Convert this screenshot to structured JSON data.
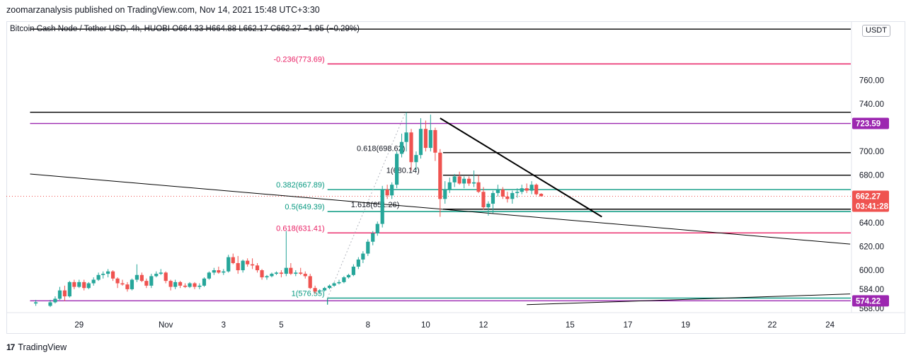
{
  "header": {
    "publisher_line": "zoomarzanalysis published on TradingView.com, Nov 14, 2021 15:48 UTC+3:30"
  },
  "legend": {
    "symbol_line": "Bitcoin Cash Node / Tether USD, 4h, HUOBI  O664.33  H664.88  L662.17  C662.27  −1.95 (−0.29%)"
  },
  "currency_badge": "USDT",
  "footer": {
    "brand": "TradingView",
    "logo_text": "17"
  },
  "colors": {
    "bull": "#26a69a",
    "bear": "#ef5350",
    "fib_pink": "#e91e63",
    "fib_teal": "#089981",
    "purple": "#9c27b0",
    "black": "#000000"
  },
  "chart_data": {
    "type": "candlestick",
    "timeframe": "4h",
    "ylim": [
      562,
      806
    ],
    "xlim_days": [
      27.3,
      57.3
    ],
    "y_ticks": [
      {
        "value": 760,
        "label": "760.00"
      },
      {
        "value": 740,
        "label": "740.00"
      },
      {
        "value": 700,
        "label": "700.00"
      },
      {
        "value": 680,
        "label": "680.00"
      },
      {
        "value": 640,
        "label": "640.00"
      },
      {
        "value": 620,
        "label": "620.00"
      },
      {
        "value": 600,
        "label": "600.00"
      },
      {
        "value": 584,
        "label": "584.00"
      },
      {
        "value": 568,
        "label": "568.00"
      }
    ],
    "x_ticks": [
      {
        "day": 29,
        "label": "29"
      },
      {
        "day": 32,
        "label": "Nov"
      },
      {
        "day": 34,
        "label": "3"
      },
      {
        "day": 36,
        "label": "5"
      },
      {
        "day": 39,
        "label": "8"
      },
      {
        "day": 41,
        "label": "10"
      },
      {
        "day": 43,
        "label": "12"
      },
      {
        "day": 46,
        "label": "15"
      },
      {
        "day": 48,
        "label": "17"
      },
      {
        "day": 50,
        "label": "19"
      },
      {
        "day": 53,
        "label": "22"
      },
      {
        "day": 55,
        "label": "24"
      }
    ],
    "price_badges": [
      {
        "value": 723.59,
        "label": "723.59",
        "color": "#9c27b0"
      },
      {
        "value": 574.22,
        "label": "574.22",
        "color": "#9c27b0"
      },
      {
        "value": 662.27,
        "label": "662.27",
        "sublabel": "03:41:28",
        "color": "#ef5350"
      }
    ],
    "last_price": 662.27,
    "horizontal_levels": [
      {
        "value": 803,
        "color": "#000000",
        "from_day": 27.3,
        "to_day": 56.5
      },
      {
        "value": 733,
        "color": "#000000",
        "from_day": 27.3,
        "to_day": 56.5
      },
      {
        "value": 723.59,
        "color": "#9c27b0",
        "from_day": 27.3,
        "to_day": 56.5
      },
      {
        "value": 699,
        "color": "#000000",
        "from_day": 41.6,
        "to_day": 56.5
      },
      {
        "value": 680,
        "color": "#000000",
        "from_day": 41.6,
        "to_day": 56.5
      },
      {
        "value": 651.4,
        "color": "#000000",
        "from_day": 41.6,
        "to_day": 56.5
      },
      {
        "value": 574.22,
        "color": "#9c27b0",
        "from_day": 27.3,
        "to_day": 56.5
      }
    ],
    "fib_levels": [
      {
        "value": 773.69,
        "label": "-0.236(773.69)",
        "color": "#e91e63",
        "from_day": 37.6,
        "to_day": 56.5
      },
      {
        "value": 667.89,
        "label": "0.382(667.89)",
        "color": "#089981",
        "from_day": 37.6,
        "to_day": 56.5
      },
      {
        "value": 649.39,
        "label": "0.5(649.39)",
        "color": "#089981",
        "from_day": 37.6,
        "to_day": 56.5
      },
      {
        "value": 631.41,
        "label": "0.618(631.41)",
        "color": "#e91e63",
        "from_day": 37.6,
        "to_day": 56.5
      },
      {
        "value": 576.55,
        "label": "1(576.55)",
        "color": "#089981",
        "from_day": 37.6,
        "to_day": 56.5
      }
    ],
    "fib_extension_labels": [
      {
        "value": 698.62,
        "label": "0.618(698.62)",
        "day": 39.8
      },
      {
        "value": 680.14,
        "label": "1(680.14)",
        "day": 40.3
      },
      {
        "value": 651.26,
        "label": "1.618(651.26)",
        "day": 39.6
      }
    ],
    "trend_lines": [
      {
        "from_day": 27.3,
        "from_value": 681,
        "to_day": 55.7,
        "to_value": 622,
        "width": 1
      },
      {
        "from_day": 44.5,
        "from_value": 571,
        "to_day": 55.7,
        "to_value": 580,
        "width": 1
      },
      {
        "from_day": 41.5,
        "from_value": 728,
        "to_day": 47.1,
        "to_value": 645,
        "width": 2
      }
    ],
    "candles": [
      {
        "day": 27.5,
        "o": 572,
        "h": 575,
        "l": 570,
        "c": 573
      },
      {
        "day": 28.0,
        "o": 570,
        "h": 575,
        "l": 569,
        "c": 573
      },
      {
        "day": 28.17,
        "o": 573,
        "h": 578,
        "l": 572,
        "c": 576
      },
      {
        "day": 28.33,
        "o": 576,
        "h": 586,
        "l": 575,
        "c": 583
      },
      {
        "day": 28.5,
        "o": 583,
        "h": 587,
        "l": 574,
        "c": 578
      },
      {
        "day": 28.67,
        "o": 578,
        "h": 591,
        "l": 577,
        "c": 590
      },
      {
        "day": 28.83,
        "o": 590,
        "h": 592,
        "l": 584,
        "c": 586
      },
      {
        "day": 29.0,
        "o": 586,
        "h": 592,
        "l": 585,
        "c": 590
      },
      {
        "day": 29.17,
        "o": 590,
        "h": 592,
        "l": 583,
        "c": 585
      },
      {
        "day": 29.33,
        "o": 585,
        "h": 590,
        "l": 584,
        "c": 589
      },
      {
        "day": 29.5,
        "o": 589,
        "h": 594,
        "l": 587,
        "c": 592
      },
      {
        "day": 29.67,
        "o": 592,
        "h": 598,
        "l": 591,
        "c": 596
      },
      {
        "day": 29.83,
        "o": 596,
        "h": 599,
        "l": 593,
        "c": 597
      },
      {
        "day": 30.0,
        "o": 597,
        "h": 601,
        "l": 594,
        "c": 599
      },
      {
        "day": 30.17,
        "o": 599,
        "h": 600,
        "l": 591,
        "c": 593
      },
      {
        "day": 30.33,
        "o": 593,
        "h": 594,
        "l": 585,
        "c": 589
      },
      {
        "day": 30.5,
        "o": 589,
        "h": 592,
        "l": 587,
        "c": 588
      },
      {
        "day": 30.67,
        "o": 588,
        "h": 590,
        "l": 582,
        "c": 584
      },
      {
        "day": 30.83,
        "o": 584,
        "h": 593,
        "l": 583,
        "c": 592
      },
      {
        "day": 31.0,
        "o": 592,
        "h": 605,
        "l": 590,
        "c": 596
      },
      {
        "day": 31.17,
        "o": 596,
        "h": 598,
        "l": 590,
        "c": 591
      },
      {
        "day": 31.33,
        "o": 591,
        "h": 593,
        "l": 585,
        "c": 587
      },
      {
        "day": 31.5,
        "o": 587,
        "h": 597,
        "l": 585,
        "c": 595
      },
      {
        "day": 31.67,
        "o": 595,
        "h": 599,
        "l": 594,
        "c": 597
      },
      {
        "day": 31.83,
        "o": 597,
        "h": 601,
        "l": 596,
        "c": 598
      },
      {
        "day": 32.0,
        "o": 598,
        "h": 599,
        "l": 589,
        "c": 591
      },
      {
        "day": 32.17,
        "o": 591,
        "h": 592,
        "l": 583,
        "c": 586
      },
      {
        "day": 32.33,
        "o": 586,
        "h": 592,
        "l": 584,
        "c": 590
      },
      {
        "day": 32.5,
        "o": 590,
        "h": 591,
        "l": 585,
        "c": 587
      },
      {
        "day": 32.67,
        "o": 587,
        "h": 589,
        "l": 585,
        "c": 586
      },
      {
        "day": 32.83,
        "o": 586,
        "h": 590,
        "l": 585,
        "c": 589
      },
      {
        "day": 33.0,
        "o": 589,
        "h": 590,
        "l": 584,
        "c": 586
      },
      {
        "day": 33.17,
        "o": 586,
        "h": 589,
        "l": 584,
        "c": 587
      },
      {
        "day": 33.33,
        "o": 587,
        "h": 594,
        "l": 586,
        "c": 593
      },
      {
        "day": 33.5,
        "o": 593,
        "h": 599,
        "l": 592,
        "c": 598
      },
      {
        "day": 33.67,
        "o": 598,
        "h": 602,
        "l": 596,
        "c": 600
      },
      {
        "day": 33.83,
        "o": 600,
        "h": 603,
        "l": 597,
        "c": 598
      },
      {
        "day": 34.0,
        "o": 598,
        "h": 601,
        "l": 596,
        "c": 599
      },
      {
        "day": 34.17,
        "o": 599,
        "h": 613,
        "l": 598,
        "c": 611
      },
      {
        "day": 34.33,
        "o": 611,
        "h": 614,
        "l": 605,
        "c": 606
      },
      {
        "day": 34.5,
        "o": 606,
        "h": 612,
        "l": 597,
        "c": 600
      },
      {
        "day": 34.67,
        "o": 600,
        "h": 609,
        "l": 598,
        "c": 608
      },
      {
        "day": 34.83,
        "o": 608,
        "h": 610,
        "l": 603,
        "c": 605
      },
      {
        "day": 35.0,
        "o": 605,
        "h": 610,
        "l": 601,
        "c": 604
      },
      {
        "day": 35.17,
        "o": 604,
        "h": 606,
        "l": 598,
        "c": 600
      },
      {
        "day": 35.33,
        "o": 600,
        "h": 601,
        "l": 592,
        "c": 594
      },
      {
        "day": 35.5,
        "o": 594,
        "h": 596,
        "l": 592,
        "c": 595
      },
      {
        "day": 35.67,
        "o": 595,
        "h": 598,
        "l": 594,
        "c": 597
      },
      {
        "day": 35.83,
        "o": 597,
        "h": 599,
        "l": 596,
        "c": 598
      },
      {
        "day": 36.0,
        "o": 598,
        "h": 600,
        "l": 594,
        "c": 597
      },
      {
        "day": 36.17,
        "o": 597,
        "h": 633,
        "l": 595,
        "c": 602
      },
      {
        "day": 36.33,
        "o": 602,
        "h": 606,
        "l": 596,
        "c": 597
      },
      {
        "day": 36.5,
        "o": 597,
        "h": 600,
        "l": 595,
        "c": 598
      },
      {
        "day": 36.67,
        "o": 598,
        "h": 602,
        "l": 596,
        "c": 597
      },
      {
        "day": 36.83,
        "o": 597,
        "h": 599,
        "l": 593,
        "c": 595
      },
      {
        "day": 37.0,
        "o": 595,
        "h": 597,
        "l": 584,
        "c": 585
      },
      {
        "day": 37.17,
        "o": 585,
        "h": 587,
        "l": 580,
        "c": 582
      },
      {
        "day": 37.33,
        "o": 582,
        "h": 584,
        "l": 580,
        "c": 583
      },
      {
        "day": 37.5,
        "o": 583,
        "h": 586,
        "l": 582,
        "c": 585
      },
      {
        "day": 37.67,
        "o": 585,
        "h": 588,
        "l": 584,
        "c": 587
      },
      {
        "day": 37.83,
        "o": 587,
        "h": 590,
        "l": 586,
        "c": 589
      },
      {
        "day": 38.0,
        "o": 589,
        "h": 592,
        "l": 588,
        "c": 590
      },
      {
        "day": 38.17,
        "o": 590,
        "h": 595,
        "l": 589,
        "c": 594
      },
      {
        "day": 38.33,
        "o": 594,
        "h": 597,
        "l": 593,
        "c": 596
      },
      {
        "day": 38.5,
        "o": 596,
        "h": 605,
        "l": 595,
        "c": 603
      },
      {
        "day": 38.67,
        "o": 603,
        "h": 611,
        "l": 601,
        "c": 609
      },
      {
        "day": 38.83,
        "o": 609,
        "h": 616,
        "l": 606,
        "c": 614
      },
      {
        "day": 39.0,
        "o": 614,
        "h": 626,
        "l": 612,
        "c": 624
      },
      {
        "day": 39.17,
        "o": 624,
        "h": 633,
        "l": 621,
        "c": 631
      },
      {
        "day": 39.33,
        "o": 631,
        "h": 641,
        "l": 629,
        "c": 639
      },
      {
        "day": 39.5,
        "o": 639,
        "h": 671,
        "l": 636,
        "c": 668
      },
      {
        "day": 39.67,
        "o": 668,
        "h": 672,
        "l": 660,
        "c": 663
      },
      {
        "day": 39.83,
        "o": 663,
        "h": 674,
        "l": 660,
        "c": 672
      },
      {
        "day": 40.0,
        "o": 672,
        "h": 700,
        "l": 669,
        "c": 698
      },
      {
        "day": 40.17,
        "o": 698,
        "h": 715,
        "l": 695,
        "c": 708
      },
      {
        "day": 40.33,
        "o": 708,
        "h": 733,
        "l": 700,
        "c": 716
      },
      {
        "day": 40.5,
        "o": 716,
        "h": 719,
        "l": 684,
        "c": 691
      },
      {
        "day": 40.67,
        "o": 691,
        "h": 700,
        "l": 684,
        "c": 697
      },
      {
        "day": 40.83,
        "o": 697,
        "h": 728,
        "l": 694,
        "c": 719
      },
      {
        "day": 41.0,
        "o": 719,
        "h": 726,
        "l": 700,
        "c": 703
      },
      {
        "day": 41.17,
        "o": 703,
        "h": 731,
        "l": 700,
        "c": 718
      },
      {
        "day": 41.33,
        "o": 718,
        "h": 720,
        "l": 692,
        "c": 699
      },
      {
        "day": 41.5,
        "o": 699,
        "h": 702,
        "l": 645,
        "c": 660
      },
      {
        "day": 41.67,
        "o": 660,
        "h": 675,
        "l": 656,
        "c": 668
      },
      {
        "day": 41.83,
        "o": 668,
        "h": 678,
        "l": 665,
        "c": 674
      },
      {
        "day": 42.0,
        "o": 674,
        "h": 681,
        "l": 670,
        "c": 679
      },
      {
        "day": 42.17,
        "o": 679,
        "h": 683,
        "l": 672,
        "c": 673
      },
      {
        "day": 42.33,
        "o": 673,
        "h": 679,
        "l": 669,
        "c": 677
      },
      {
        "day": 42.5,
        "o": 677,
        "h": 679,
        "l": 671,
        "c": 673
      },
      {
        "day": 42.67,
        "o": 673,
        "h": 684,
        "l": 670,
        "c": 674
      },
      {
        "day": 42.83,
        "o": 674,
        "h": 680,
        "l": 665,
        "c": 666
      },
      {
        "day": 43.0,
        "o": 666,
        "h": 670,
        "l": 651,
        "c": 653
      },
      {
        "day": 43.17,
        "o": 653,
        "h": 658,
        "l": 646,
        "c": 656
      },
      {
        "day": 43.33,
        "o": 656,
        "h": 667,
        "l": 648,
        "c": 665
      },
      {
        "day": 43.5,
        "o": 665,
        "h": 672,
        "l": 662,
        "c": 668
      },
      {
        "day": 43.67,
        "o": 668,
        "h": 670,
        "l": 660,
        "c": 662
      },
      {
        "day": 43.83,
        "o": 662,
        "h": 666,
        "l": 657,
        "c": 660
      },
      {
        "day": 44.0,
        "o": 660,
        "h": 667,
        "l": 656,
        "c": 665
      },
      {
        "day": 44.17,
        "o": 665,
        "h": 669,
        "l": 661,
        "c": 666
      },
      {
        "day": 44.33,
        "o": 666,
        "h": 672,
        "l": 664,
        "c": 669
      },
      {
        "day": 44.5,
        "o": 669,
        "h": 673,
        "l": 665,
        "c": 667
      },
      {
        "day": 44.67,
        "o": 667,
        "h": 675,
        "l": 664,
        "c": 672
      },
      {
        "day": 44.83,
        "o": 672,
        "h": 673,
        "l": 663,
        "c": 664
      },
      {
        "day": 45.0,
        "o": 664.33,
        "h": 664.88,
        "l": 662.17,
        "c": 662.27
      }
    ]
  }
}
